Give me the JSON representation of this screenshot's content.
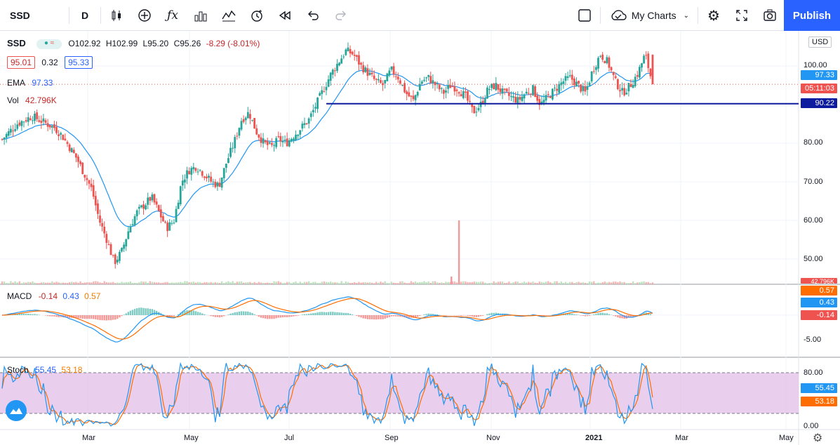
{
  "toolbar": {
    "symbol": "SSD",
    "interval": "D",
    "my_charts": "My Charts",
    "publish": "Publish"
  },
  "legend": {
    "symbol": "SSD",
    "ohlc": {
      "o": "O102.92",
      "h": "H102.99",
      "l": "L95.20",
      "c": "C95.26",
      "chg": "-8.29 (-8.01%)"
    },
    "bid": "95.01",
    "spread": "0.32",
    "ask": "95.33",
    "ema_label": "EMA",
    "ema_value": "97.33",
    "vol_label": "Vol",
    "vol_value": "42.796K",
    "macd_label": "MACD",
    "macd_values": [
      "-0.14",
      "0.43",
      "0.57"
    ],
    "stoch_label": "Stoch",
    "stoch_values": [
      "55.45",
      "53.18"
    ]
  },
  "price_axis": {
    "currency": "USD",
    "labels": [
      "100.00",
      "80.00",
      "70.00",
      "60.00",
      "50.00"
    ],
    "tags": {
      "ema": "97.33",
      "countdown": "05:11:03",
      "hline": "90.22",
      "vol": "42.796K"
    }
  },
  "macd_axis": {
    "labels": [
      "-5.00"
    ],
    "tags": [
      "0.57",
      "0.43",
      "-0.14"
    ]
  },
  "stoch_axis": {
    "labels": [
      "80.00",
      "0.00"
    ],
    "tags": [
      "55.45",
      "53.18"
    ]
  },
  "time_axis": [
    "Mar",
    "May",
    "Jul",
    "Sep",
    "Nov",
    "2021",
    "Mar",
    "May"
  ],
  "colors": {
    "up": "#26a69a",
    "down": "#ef5350",
    "ema": "#2196f3",
    "hline": "#0d1b9e",
    "macd": "#2196f3",
    "signal": "#ff6d00",
    "stoch_k": "#2196f3",
    "stoch_d": "#ff6d00",
    "stoch_band": "#e1bee7",
    "brand": "#2962ff"
  },
  "chart_data": {
    "type": "candlestick",
    "price_close_series": [
      81,
      83,
      85,
      86,
      87,
      86,
      85,
      84,
      82,
      79,
      76,
      72,
      68,
      60,
      55,
      49,
      52,
      58,
      62,
      64,
      66,
      62,
      58,
      60,
      70,
      73,
      74,
      72,
      70,
      69,
      75,
      80,
      86,
      88,
      83,
      80,
      79,
      81,
      80,
      82,
      84,
      86,
      90,
      94,
      98,
      101,
      104,
      103,
      100,
      98,
      96,
      95,
      99,
      97,
      93,
      91,
      96,
      97,
      95,
      93,
      95,
      94,
      92,
      88,
      90,
      94,
      95,
      93,
      92,
      91,
      93,
      94,
      90,
      92,
      94,
      96,
      97,
      95,
      93,
      99,
      103,
      101,
      96,
      93,
      95,
      98,
      103,
      95.26
    ],
    "ema_value": 97.33,
    "horizontal_line": 90.22,
    "macd": -0.14,
    "signal": 0.43,
    "histogram": 0.57,
    "stoch_k": 55.45,
    "stoch_d": 53.18
  }
}
